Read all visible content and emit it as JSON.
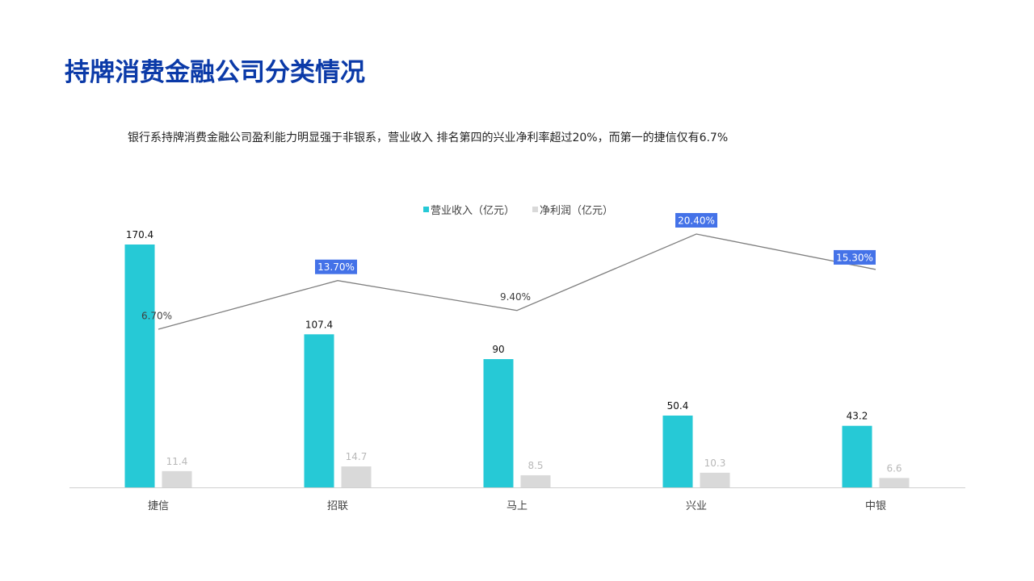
{
  "page": {
    "title": "持牌消费金融公司分类情况",
    "subtitle": "银行系持牌消费金融公司盈利能力明显强于非银系，营业收入 排名第四的兴业净利率超过20%，而第一的捷信仅有6.7%"
  },
  "chart_data": {
    "type": "bar",
    "categories": [
      "捷信",
      "招联",
      "马上",
      "兴业",
      "中银"
    ],
    "series": [
      {
        "name": "营业收入（亿元）",
        "values": [
          170.4,
          107.4,
          90,
          50.4,
          43.2
        ],
        "color": "#26c9d6"
      },
      {
        "name": "净利润（亿元）",
        "values": [
          11.4,
          14.7,
          8.5,
          10.3,
          6.6
        ],
        "color": "#d9d9d9"
      }
    ],
    "line": {
      "name": "净利率",
      "values": [
        6.7,
        13.7,
        9.4,
        20.4,
        15.3
      ],
      "labels": [
        "6.70%",
        "13.70%",
        "9.40%",
        "20.40%",
        "15.30%"
      ],
      "highlighted": [
        false,
        true,
        false,
        true,
        true
      ],
      "color": "#7f7f7f",
      "highlight_color": "#4472e8"
    },
    "bar_axis_range": [
      0,
      170.4
    ],
    "line_axis_range": [
      2,
      20.4
    ],
    "legend_position": "top-center",
    "grid": false
  }
}
